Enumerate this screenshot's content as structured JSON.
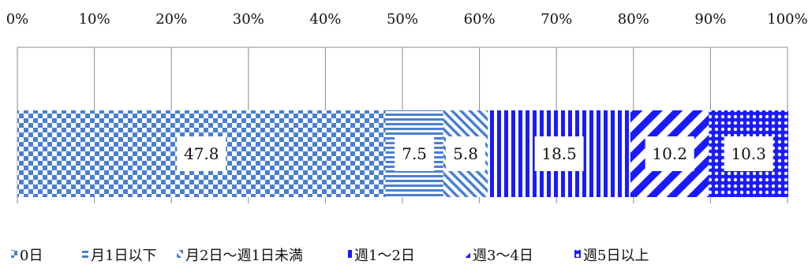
{
  "chart_data": {
    "type": "bar",
    "orientation": "horizontal",
    "stacked": true,
    "percent_stacked": true,
    "categories": [
      ""
    ],
    "series": [
      {
        "name": "0日",
        "values": [
          47.8
        ],
        "label": "47.8",
        "color": "#4a7fd0",
        "pattern": "checker"
      },
      {
        "name": "月1日以下",
        "values": [
          7.5
        ],
        "label": "7.5",
        "color": "#4a7fd0",
        "pattern": "horizontal-stripes"
      },
      {
        "name": "月2日〜週1日未満",
        "values": [
          5.8
        ],
        "label": "5.8",
        "color": "#4a7fd0",
        "pattern": "diagonal-stripes"
      },
      {
        "name": "週1〜2日",
        "values": [
          18.5
        ],
        "label": "18.5",
        "color": "#1a1aff",
        "pattern": "vertical-stripes"
      },
      {
        "name": "週3〜4日",
        "values": [
          10.2
        ],
        "label": "10.2",
        "color": "#1a1aff",
        "pattern": "wide-diagonal-stripes"
      },
      {
        "name": "週5日以上",
        "values": [
          10.3
        ],
        "label": "10.3",
        "color": "#1a1aff",
        "pattern": "dotted"
      }
    ],
    "xaxis": {
      "ticks": [
        "0%",
        "10%",
        "20%",
        "30%",
        "40%",
        "50%",
        "60%",
        "70%",
        "80%",
        "90%",
        "100%"
      ],
      "range": [
        0,
        100
      ],
      "position": "top"
    },
    "grid": true,
    "legend": {
      "position": "bottom"
    }
  }
}
